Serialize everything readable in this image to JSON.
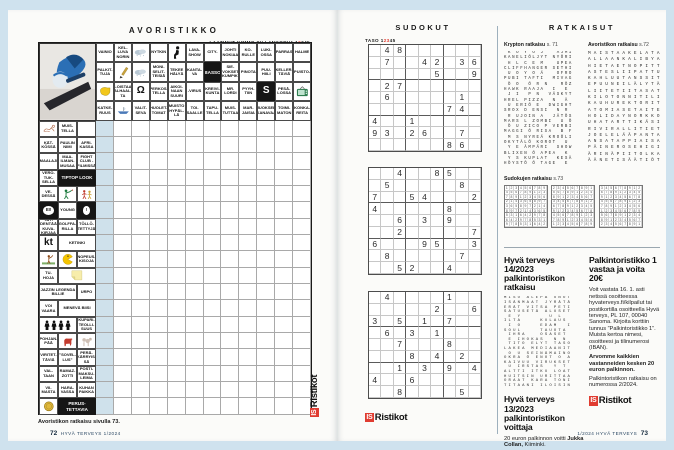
{
  "colors": {
    "background": "#cfe2ee",
    "page": "#fbfbf9",
    "accent_red": "#e03c31",
    "highlight_blue": "#cfe1eb",
    "black_cell": "#161616"
  },
  "left_page": {
    "title": "AVORISTIKKO",
    "byline": "LAATINUT KIMMO SILLANKORVA",
    "diff_pre": "1",
    "diff_hot": "2",
    "diff_post": "345",
    "solution_note": "Avoristikon ratkaisu sivulla 73.",
    "footer_page": "72",
    "footer_text": "HYVÄ TERVEYS 1/2024",
    "side_logo": {
      "box": "IS",
      "name": "Ristikot"
    },
    "crossword": {
      "photo": "skeleton-athlete-photo",
      "top_clues": [
        [
          {
            "t": "VAINIO"
          },
          {
            "t": "KEL-LUVA NORIN"
          },
          {
            "i": "cloud"
          },
          {
            "t": "NYTKIN"
          },
          {
            "i": "kneel"
          },
          {
            "t": "LAVA-SHOW"
          },
          {
            "t": "CITY-"
          },
          {
            "t": "JOHTI NOKIAA"
          },
          {
            "t": "KO-RULLE"
          },
          {
            "t": "LUKI-OSSA"
          },
          {
            "t": "PARRAS"
          },
          {
            "t": "HALME"
          }
        ],
        [
          {
            "t": "PALKIT-TUJA"
          },
          {
            "i": "pencil"
          },
          {
            "i": "cloud"
          },
          {
            "t": "MONI-SELIT-TEISIÄ"
          },
          {
            "t": "TEKEE HÄLYÄ"
          },
          {
            "t": "KANTA-VA"
          },
          {
            "t": "BASSO",
            "k": 1
          },
          {
            "t": "SIE-VOKSET KUMPIK."
          },
          {
            "t": "PINOTA"
          },
          {
            "t": "PUU-HIILI"
          },
          {
            "t": "KELLER-TÄVIÄ"
          },
          {
            "t": "PUISTO-"
          }
        ],
        [
          {
            "i": "blob"
          },
          {
            "t": "LOISTAA ALHAAL-TA"
          },
          {
            "t": "Ω",
            "g": 1
          },
          {
            "t": "PERKOS-TELLA"
          },
          {
            "t": "AIKOI-NAAN SUURI"
          },
          {
            "t": "-VIRUS"
          },
          {
            "t": "KREIVI-KUNTA"
          },
          {
            "t": "MR. LORDI"
          },
          {
            "t": "PYYH-TIIN"
          },
          {
            "t": "S",
            "k": 1,
            "g": 1
          },
          {
            "t": "PESÄ-LOSSA"
          },
          {
            "i": "tv"
          }
        ],
        [
          {
            "t": "KATKE-RUUS"
          },
          {
            "i": "boat"
          },
          {
            "t": "VALIT-SEVA"
          },
          {
            "t": "HUOLET-TOMAT"
          },
          {
            "t": "MUISTO HYPÄL-LÄ"
          },
          {
            "t": "TOI-SAALLE"
          },
          {
            "t": "TAPU-TELLA"
          },
          {
            "t": "MUIS-TUTTAA"
          },
          {
            "t": "MAR-JAISIA"
          },
          {
            "t": "JUOKSEE KANAVAA"
          },
          {
            "t": "TOIMI-MATON"
          },
          {
            "t": "KONKA-REITA"
          }
        ]
      ],
      "left_clues": [
        [
          {
            "i": "sketch"
          },
          {
            "t": "MUIS-TELLA"
          },
          {
            "t": ""
          }
        ],
        [
          {
            "t": "KÄT-KÖSSÄ"
          },
          {
            "t": "PAULIN NIMI"
          },
          {
            "t": "AFRI-KASSA"
          }
        ],
        [
          {
            "t": "MAALAJI"
          },
          {
            "t": "MAA-ILMAN-MUSAA"
          },
          {
            "t": "FIGHT CLUB -FILMISSÄ"
          }
        ],
        [
          {
            "t": "VERO-TUK-SELLA"
          },
          {
            "t": "TIPTOP LOOK",
            "k": 1,
            "s": 2
          }
        ],
        [
          {
            "t": "VE-DESSÄ"
          },
          {
            "i": "darts"
          },
          {
            "i": "dancers"
          }
        ],
        [
          {
            "b": "EI!"
          },
          {
            "t": "YOUNG"
          },
          {
            "b": "!"
          }
        ],
        [
          {
            "t": "TÄY-DENTÄÄ KUVA-KIRJAA"
          },
          {
            "t": "GOLFFA-RILLA"
          },
          {
            "t": "TÖLLÖ-TETTYJÄ"
          }
        ],
        [
          {
            "t": "kt",
            "g": 1
          },
          {
            "t": "KETINKI",
            "s": 2
          }
        ],
        [
          {
            "i": "golfer"
          },
          {
            "i": "pacman"
          },
          {
            "t": "NOPEUS-KISOJA"
          }
        ],
        [
          {
            "t": "TU-HOJA"
          },
          {
            "i": "note",
            "s": 2
          }
        ],
        [
          {
            "t": "JAZZIN LEGENDA BILLIE",
            "s": 2
          },
          {
            "t": "URPO"
          }
        ],
        [
          {
            "t": "VOI VAARA"
          },
          {
            "t": "MENEVÄ BIISI",
            "s": 2
          }
        ],
        [
          {
            "i": "figures",
            "s": 2
          },
          {
            "t": "KUPARI-TEOLLI-SUUS"
          }
        ],
        [
          {
            "t": "POHJAN-PÄÄ"
          },
          {
            "i": "dogred"
          },
          {
            "i": "dog"
          }
        ],
        [
          {
            "t": "VIRITET-TÄVIÄ"
          },
          {
            "t": "”SOVEL-LUS”"
          },
          {
            "t": "PERÄ-KÄRRYIS-SÄ"
          }
        ],
        [
          {
            "t": "VAL-TAAN"
          },
          {
            "t": "RAMAZ-ZOTTI"
          },
          {
            "t": "POSTI-MAKSU-LEIMA"
          }
        ],
        [
          {
            "t": "VII-MASTA"
          },
          {
            "t": "HARA-VASSA"
          },
          {
            "t": "KUHAN PAIKKA"
          }
        ],
        [
          {
            "i": "coin"
          },
          {
            "t": "PERUS-TETTAVIA",
            "k": 1,
            "s": 2
          }
        ]
      ]
    }
  },
  "sudoku_page": {
    "title": "SUDOKUT",
    "level_label": "TASO",
    "scale_pre": "1",
    "scale_hot": "23",
    "scale_post": "45",
    "logo": {
      "box": "IS",
      "name": "Ristikot"
    },
    "grids": [
      [
        ".48......",
        ".7..42.36",
        ".....5..9",
        ".27......",
        ".6.....1.",
        "......74.",
        "4..1.....",
        "93.26..7.",
        "......86."
      ],
      [
        "..4..85..",
        ".5.....8.",
        "7..54...2",
        "4.....8..",
        "..6.3.9..",
        "..2.....7",
        "6...95..3",
        ".8.....7.",
        "..52..4.."
      ],
      [
        ".4....1..",
        ".....2..6",
        "3.5.1.7..",
        ".6.3.1...",
        "..7...8..",
        "...8.4.2.",
        "..1.3.9.4",
        "4..6.....",
        "..8....5."
      ]
    ]
  },
  "solutions_page": {
    "title": "RATKAISUT",
    "krypton": {
      "heading": "Krypton ratkaisu",
      "ref": "s. 71",
      "rows": [
        " K O Y O J   AJMI",
        "KANELIÖLJYT NYÖRI",
        " H L C E M   UPEA",
        "CLIFFHANGER SETHI",
        " U O Y O Ä   OFRO",
        "PUBI TAFTI  MIVAG",
        " Ö O  Ö R N   RÖZ",
        "HAWK RAAJA  I  E ",
        " J I  P N  VÄSKYT",
        "HREL PIZZA  N  Ä ",
        " U ERIÖ E  DWIGHT",
        "SROX D ENSI  N R ",
        " R UJOIN A  JÄTÖS",
        "MARS L ZOMBI  U Ö",
        " Ö U ZICO P VERBI",
        "MAGGI Ö RISA  B F",
        " M S NYREÄ KROÖLI",
        "OKYTÄLÖ KOROT  U ",
        " Y E ÄMPÄRI  SHOW",
        "BLIXEN Ö APEA  K ",
        " Y S KUPLAT  KESÄ",
        "HÖYSTÖ Ö TAGE  E "
      ]
    },
    "avoristikko": {
      "heading": "Avoristikon ratkaisu",
      "ref": "s.72",
      "rows": [
        "MAISTAAKELATA",
        "ALLAANKALIBYA",
        "HIETAETNOPITT",
        "ASTESLIIPATTU",
        "KAHLUUTANSSIT",
        "EPUUNEILÄLYTÄ",
        "LIITETIITASAT",
        "KILOTONNITILI",
        "KAUHUREKTORIT",
        "ATOMIASETAITE",
        "HOLIDAYNORKKO",
        "UHATARTTIKÄSI",
        "RIVIRALLITIET",
        "JOELELÄÄPANTA",
        "ANSATAPPIAISA",
        "PÄINEROSEHIGI",
        "ÄRINÄPIITOLKA",
        "ÄÄNETISÄÄTIÖT"
      ]
    },
    "sudoku": {
      "heading": "Sudokujen ratkaisu",
      "ref": "s.73",
      "grids": [
        [
          "123456789",
          "456789123",
          "789123456",
          "214365897",
          "365897214",
          "897214365",
          "531642978",
          "642978531",
          "978531642"
        ],
        [
          "234567891",
          "567891234",
          "891234567",
          "345678912",
          "678912345",
          "912345678",
          "456789123",
          "789123456",
          "123456789"
        ],
        [
          "345678912",
          "678912345",
          "912345678",
          "456789123",
          "789123456",
          "123456789",
          "567891234",
          "891234567",
          "234567891"
        ]
      ]
    },
    "prize_solution": {
      "heading_line1": "Hyvä terveys 14/2023",
      "heading_line2": "palkintoristikon ratkaisu",
      "rows": [
        "MISU ALEPA UNOT",
        "ISÄNMAAT JYRÄTÄ",
        "ERÄT VITSA PETI",
        "SATUSETÄ ALUSET",
        " E Y      U L  ",
        "ILTA    KULAUS ",
        " I O    EDAM  I",
        "SOUL    TAUOTA ",
        " IHRA   OSASET ",
        " E IHOKAS  N N ",
        " TITO ELYT TASO",
        "LAKEA MEDIAANIT",
        " O U SEINÄMAINO",
        "OKRA Ö ENOT O A",
        "KAIVUU VIRUKSET",
        " U IRSTAS  Y T ",
        "ALTTI ITKU LOAT",
        "HUITSIN URITTAA",
        "ORAAT KARA TONI",
        "TITAANI ILOISIN"
      ]
    },
    "winner": {
      "heading_line1": "Hyvä terveys 13/2023",
      "heading_line2": "palkintoristikon voittaja",
      "body_prefix": "20 euron palkinnon voitti ",
      "winner_name": "Jukka Collan,",
      "winner_place": " Kiiminki."
    },
    "prize_entry": {
      "heading_line1": "Palkintoristikko 1",
      "heading_line2": "vastaa ja voita 20€",
      "body": "Voit vastata 16. 1. asti netissä osoitteessa hyvaterveys.fi/kilpailut tai postikortilla osoitteella Hyvä terveys, PL 107, 00040 Sanoma. Kirjoita korttiin tunnus ”Palkintoristikko 1”. Muista kertoa nimesi, osoitteesi ja tilinumerosi (IBAN).",
      "body_bold": "Arvomme kaikkien vastanneiden kesken 20 euron palkinnon.",
      "body_tail": "Palkintoristikon ratkaisu on numerossa 2/2024."
    },
    "logo": {
      "box": "IS",
      "name": "Ristikot"
    },
    "footer_text": "1/2024 HYVÄ TERVEYS",
    "footer_page": "73"
  }
}
